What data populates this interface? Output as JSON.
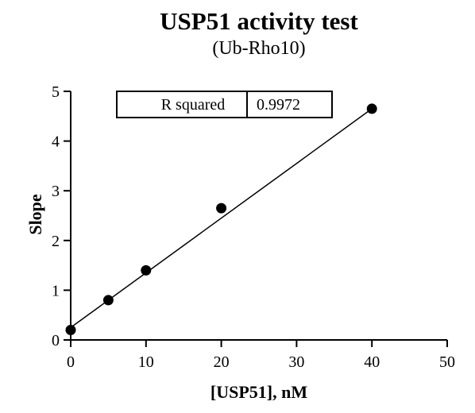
{
  "chart_data": {
    "type": "scatter",
    "title": "USP51 activity test",
    "subtitle": "(Ub-Rho10)",
    "xlabel": "[USP51], nM",
    "ylabel": "Slope",
    "xlim": [
      0,
      50
    ],
    "ylim": [
      0,
      5
    ],
    "x_ticks": [
      "0",
      "10",
      "20",
      "30",
      "40",
      "50"
    ],
    "y_ticks": [
      "0",
      "1",
      "2",
      "3",
      "4",
      "5"
    ],
    "grid": false,
    "points": {
      "x": [
        0,
        5,
        10,
        20,
        40
      ],
      "y": [
        0.2,
        0.8,
        1.4,
        2.65,
        4.65
      ]
    },
    "fit_line": {
      "x": [
        0,
        40
      ],
      "y": [
        0.25,
        4.65
      ]
    },
    "stats_table": {
      "label": "R squared",
      "value": "0.9972"
    },
    "colors": {
      "marker": "#000000",
      "line": "#000000"
    }
  }
}
